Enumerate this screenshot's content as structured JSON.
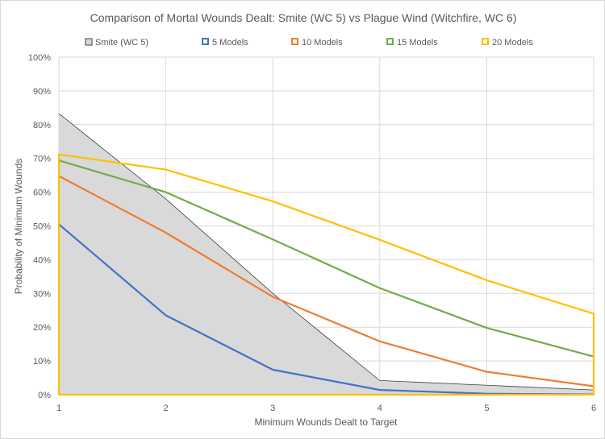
{
  "chart_data": {
    "type": "line",
    "title": "Comparison of  Mortal Wounds Dealt: Smite (WC  5) vs Plague Wind (Witchfire, WC 6)",
    "xlabel": "Minimum Wounds Dealt to Target",
    "ylabel": "Probability of Minimum Wounds",
    "x": [
      1,
      2,
      3,
      4,
      5,
      6
    ],
    "ylim": [
      0,
      100
    ],
    "yticks": [
      "0%",
      "10%",
      "20%",
      "30%",
      "40%",
      "50%",
      "60%",
      "70%",
      "80%",
      "90%",
      "100%"
    ],
    "grid": true,
    "legend_position": "top",
    "series": [
      {
        "name": "Smite (WC 5)",
        "kind": "area",
        "color": "#d9d9d9",
        "stroke": "#404040",
        "values": [
          83.3,
          58.0,
          30.0,
          4.2,
          2.8,
          1.4
        ]
      },
      {
        "name": "5 Models",
        "color": "#4472c4",
        "values": [
          50.5,
          23.5,
          7.4,
          1.4,
          0.3,
          0.1
        ]
      },
      {
        "name": "10 Models",
        "color": "#ed7d31",
        "values": [
          64.8,
          48.0,
          29.0,
          15.8,
          6.8,
          2.5
        ]
      },
      {
        "name": "15 Models",
        "color": "#70ad47",
        "values": [
          69.4,
          60.0,
          46.0,
          31.6,
          19.8,
          11.3
        ]
      },
      {
        "name": "20 Models",
        "color": "#ffc000",
        "values": [
          71.2,
          66.7,
          57.3,
          45.9,
          33.9,
          24.0
        ]
      }
    ]
  }
}
